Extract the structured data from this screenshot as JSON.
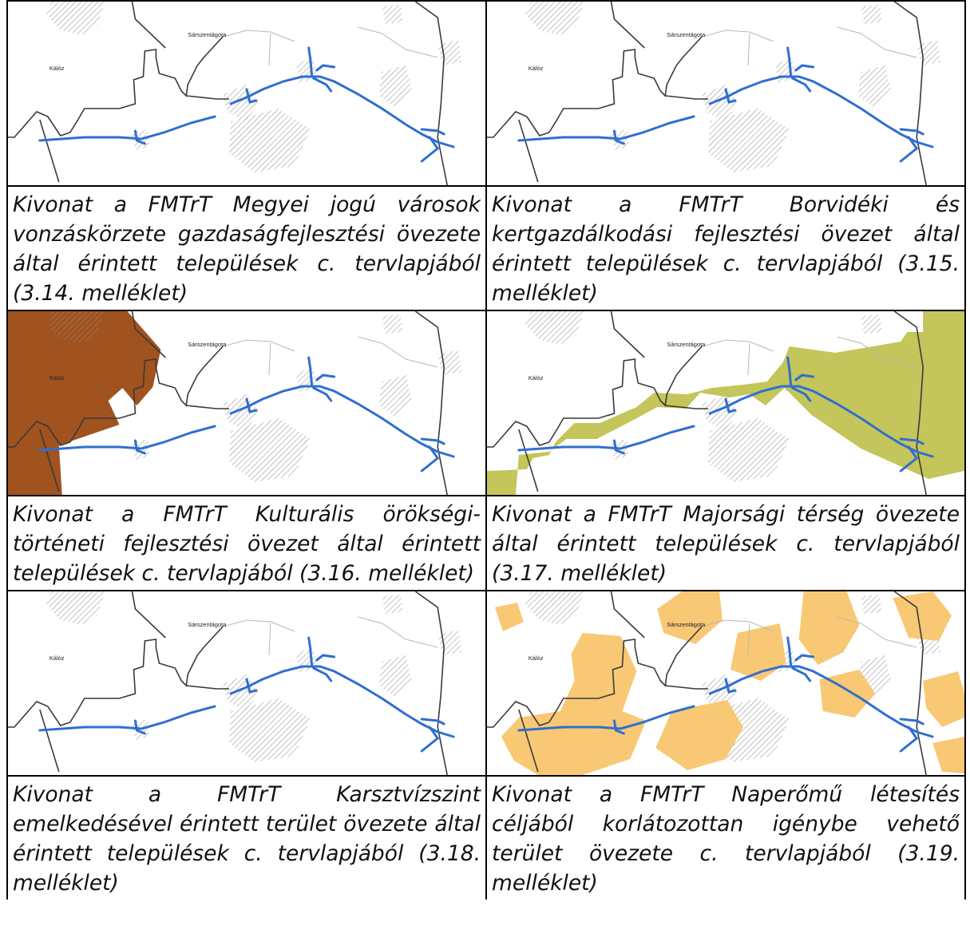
{
  "map_labels": {
    "town_a": "Kálóz",
    "town_b": "Sárszentágota"
  },
  "colors": {
    "road": "#2f6fd0",
    "boundary": "#3a3a3a",
    "hatch": "#9a9a9a",
    "zone_cultural": "#a0521f",
    "zone_manor": "#c4c55a",
    "zone_solar": "#f8c874"
  },
  "panels": [
    {
      "overlay": "none",
      "caption": "Kivonat a FMTrT Megyei jogú városok vonzáskörzete gazdaságfejlesztési övezete által érintett települések c. tervlapjából (3.14. melléklet)"
    },
    {
      "overlay": "none",
      "caption": "Kivonat a FMTrT Borvidéki és kertgazdálkodási fejlesztési övezet által érintett települések c. tervlapjából (3.15. melléklet)"
    },
    {
      "overlay": "cultural",
      "caption": "Kivonat a FMTrT Kulturális örökségi-történeti fejlesztési övezet által érintett települések c. tervlapjából (3.16. melléklet)"
    },
    {
      "overlay": "manor",
      "caption": "Kivonat a FMTrT Majorsági térség övezete által érintett települések c. tervlapjából (3.17. melléklet)"
    },
    {
      "overlay": "none",
      "caption": "Kivonat a FMTrT Karsztvízszint emelkedésével érintett terület övezete által érintett települések c. tervlapjából (3.18. melléklet)"
    },
    {
      "overlay": "solar",
      "caption": "Kivonat a FMTrT Naperőmű létesítés céljából korlátozottan igénybe vehető terület övezete c. tervlapjából (3.19. melléklet)"
    }
  ]
}
